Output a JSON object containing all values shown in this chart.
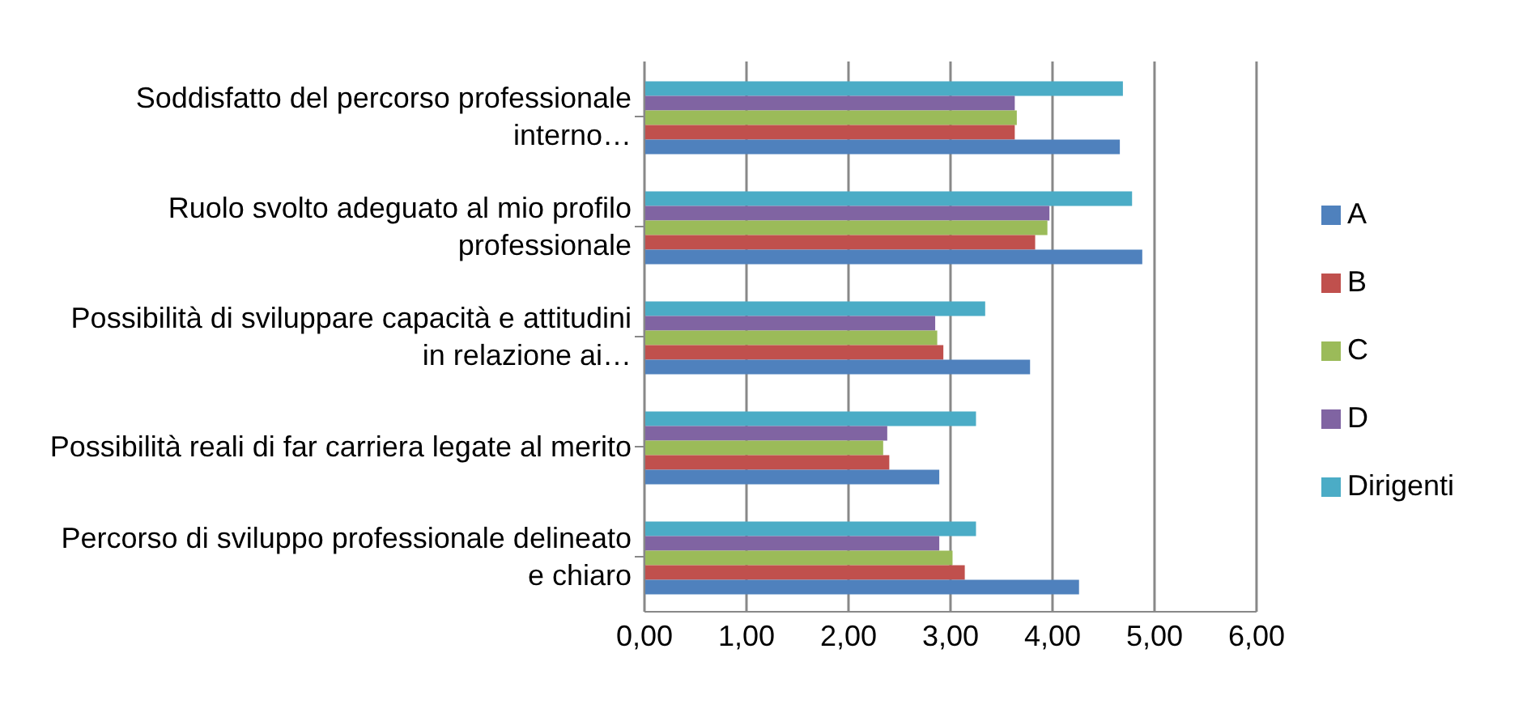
{
  "chart_data": {
    "type": "bar",
    "orientation": "horizontal",
    "categories": [
      "Soddisfatto del percorso professionale interno…",
      "Ruolo svolto adeguato al mio profilo professionale",
      "Possibilità di sviluppare capacità e attitudini in relazione ai…",
      "Possibilità reali di far carriera legate al merito",
      "Percorso di sviluppo professionale delineato e chiaro"
    ],
    "series": [
      {
        "name": "Dirigenti",
        "color": "#4bacc6",
        "values": [
          4.69,
          4.78,
          3.34,
          3.25,
          3.25
        ]
      },
      {
        "name": "D",
        "color": "#8064a2",
        "values": [
          3.63,
          3.97,
          2.85,
          2.38,
          2.89
        ]
      },
      {
        "name": "C",
        "color": "#9bbb59",
        "values": [
          3.65,
          3.95,
          2.87,
          2.34,
          3.02
        ]
      },
      {
        "name": "B",
        "color": "#c0504d",
        "values": [
          3.63,
          3.83,
          2.93,
          2.4,
          3.14
        ]
      },
      {
        "name": "A",
        "color": "#4f81bd",
        "values": [
          4.66,
          4.88,
          3.78,
          2.89,
          4.26
        ]
      }
    ],
    "xlim": [
      0,
      6
    ],
    "xticks": [
      {
        "value": 0,
        "label": "0,00"
      },
      {
        "value": 1,
        "label": "1,00"
      },
      {
        "value": 2,
        "label": "2,00"
      },
      {
        "value": 3,
        "label": "3,00"
      },
      {
        "value": 4,
        "label": "4,00"
      },
      {
        "value": 5,
        "label": "5,00"
      },
      {
        "value": 6,
        "label": "6,00"
      }
    ],
    "grid": "x",
    "legend": "right"
  }
}
